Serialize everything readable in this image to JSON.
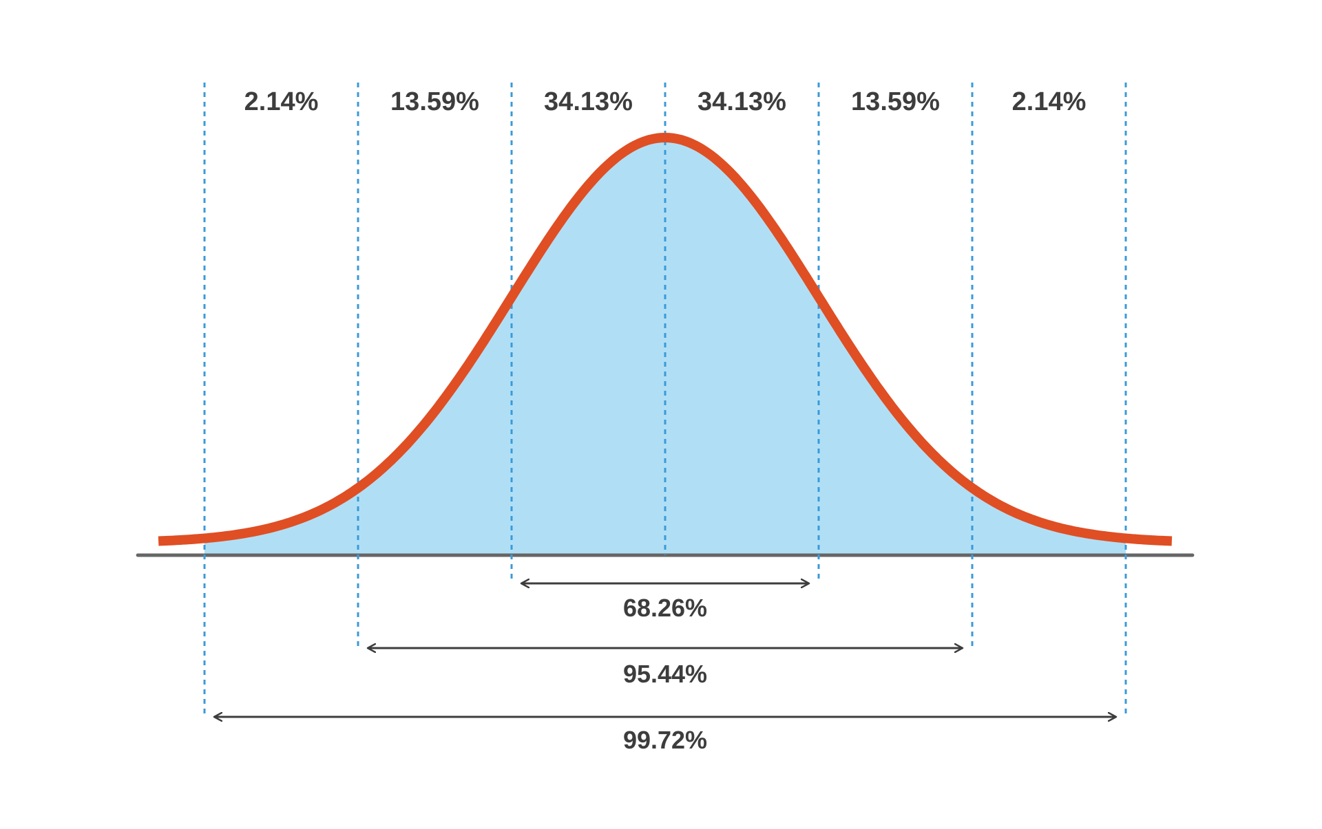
{
  "colors": {
    "curve": "#e04e24",
    "fill": "#b0dff5",
    "guide": "#3a9ad9",
    "baseline": "#666666",
    "text": "#3d3d3d",
    "arrow": "#3d3d3d"
  },
  "chart_data": {
    "type": "area",
    "distribution": "normal",
    "mean": 0,
    "std": 1,
    "xlim": [
      -3.3,
      3.3
    ],
    "boundaries": [
      -3,
      -2,
      -1,
      0,
      1,
      2,
      3
    ],
    "shaded_range": [
      -3,
      3
    ],
    "grid": false,
    "segments": [
      {
        "from": -3,
        "to": -2,
        "label": "2.14%"
      },
      {
        "from": -2,
        "to": -1,
        "label": "13.59%"
      },
      {
        "from": -1,
        "to": 0,
        "label": "34.13%"
      },
      {
        "from": 0,
        "to": 1,
        "label": "34.13%"
      },
      {
        "from": 1,
        "to": 2,
        "label": "13.59%"
      },
      {
        "from": 2,
        "to": 3,
        "label": "2.14%"
      }
    ],
    "ranges": [
      {
        "from": -1,
        "to": 1,
        "label": "68.26%"
      },
      {
        "from": -2,
        "to": 2,
        "label": "95.44%"
      },
      {
        "from": -3,
        "to": 3,
        "label": "99.72%"
      }
    ]
  }
}
